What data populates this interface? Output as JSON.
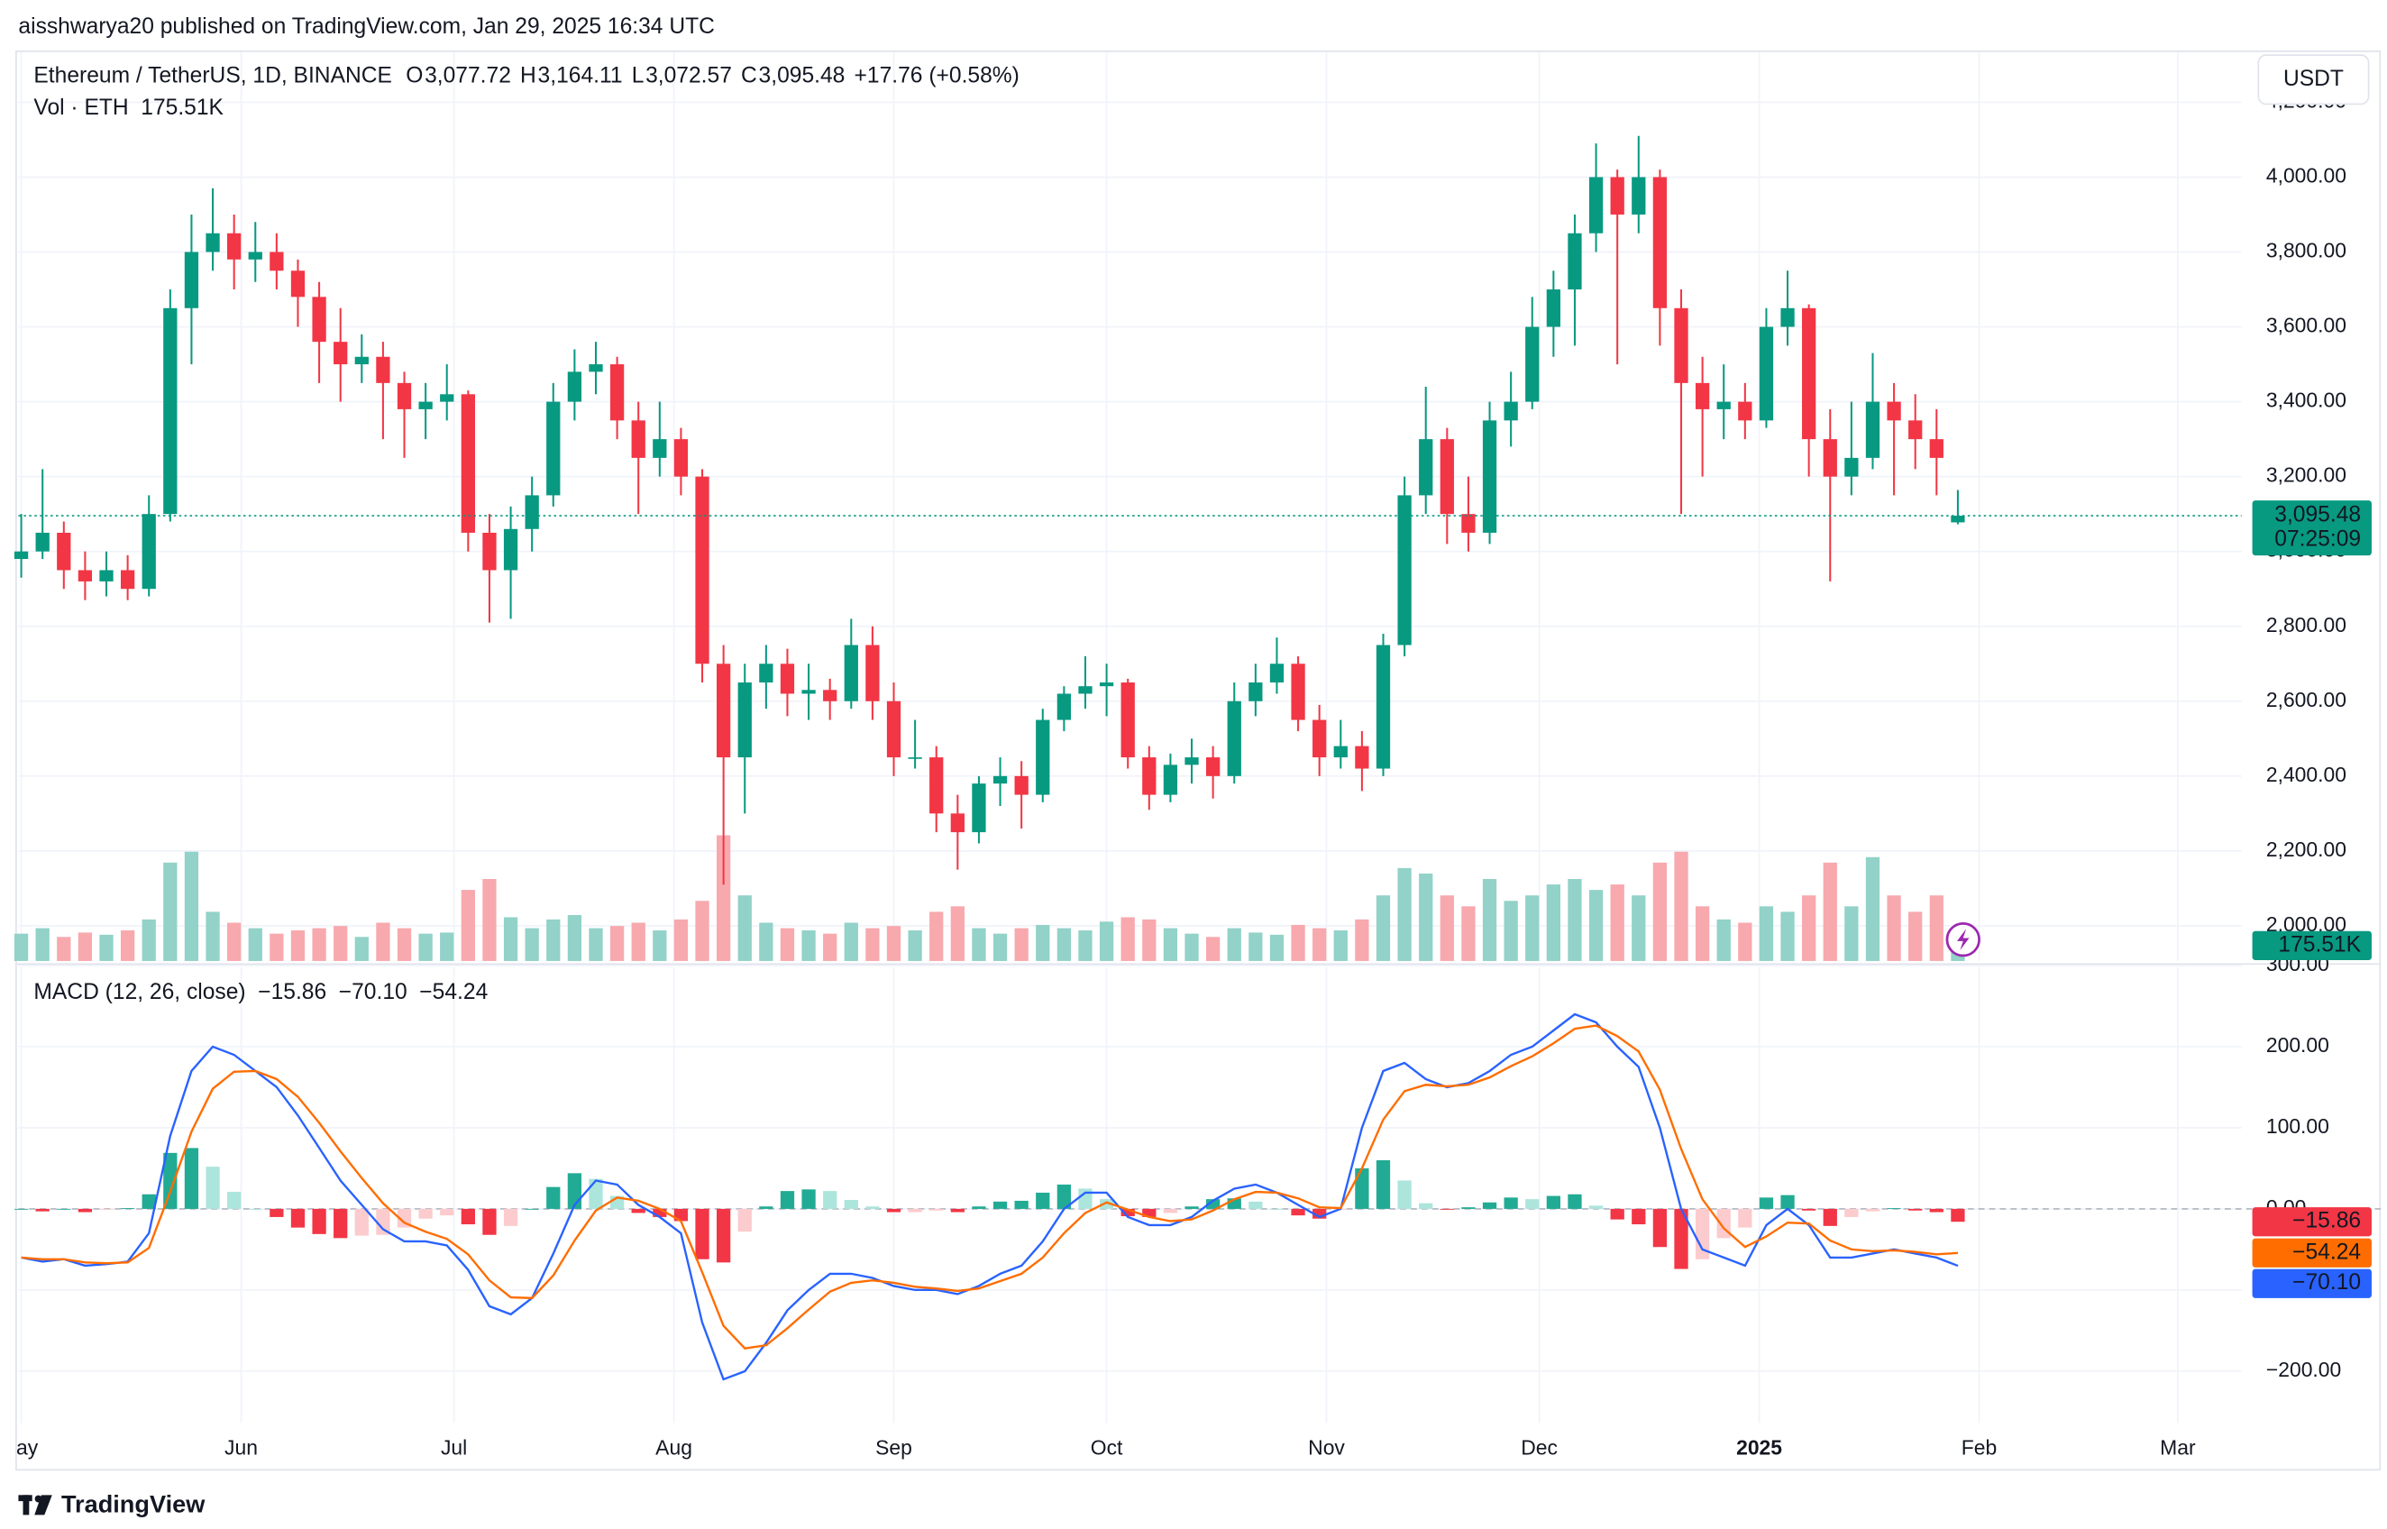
{
  "header": {
    "title": "aisshwarya20 published on TradingView.com, Jan 29, 2025 16:34 UTC"
  },
  "footer": {
    "brand": "TradingView"
  },
  "chart_data": [
    {
      "type": "candlestick",
      "title": "Ethereum / TetherUS, 1D, BINANCE",
      "ohlc_keys": [
        "O",
        "H",
        "L",
        "C"
      ],
      "ohlc_labels": [
        "3,077.72",
        "3,164.11",
        "3,072.57",
        "3,095.48"
      ],
      "change_label": "+17.76 (+0.58%)",
      "currency": "USDT",
      "countdown": "07:25:09",
      "up_color": "#089981",
      "down_color": "#f23645",
      "x": [
        0,
        3,
        6,
        9,
        12,
        15,
        18,
        21,
        24,
        27,
        30,
        33,
        36,
        39,
        42,
        45,
        48,
        51,
        54,
        57,
        60,
        63,
        66,
        69,
        72,
        75,
        78,
        81,
        84,
        87,
        90,
        93,
        96,
        99,
        102,
        105,
        108,
        111,
        114,
        117,
        120,
        123,
        126,
        129,
        132,
        135,
        138,
        141,
        144,
        147,
        150,
        153,
        156,
        159,
        162,
        165,
        168,
        171,
        174,
        177,
        180,
        183,
        186,
        189,
        192,
        195,
        198,
        201,
        204,
        207,
        210,
        213,
        216,
        219,
        222,
        225,
        228,
        231,
        234,
        237,
        240,
        243,
        246,
        249,
        252,
        255,
        258,
        261,
        264,
        267,
        270,
        273
      ],
      "ohlc": [
        [
          2980,
          3100,
          2930,
          3000
        ],
        [
          3000,
          3220,
          2980,
          3050
        ],
        [
          3050,
          3080,
          2900,
          2950
        ],
        [
          2950,
          3000,
          2870,
          2920
        ],
        [
          2920,
          3000,
          2880,
          2950
        ],
        [
          2950,
          2990,
          2870,
          2900
        ],
        [
          2900,
          3150,
          2880,
          3100
        ],
        [
          3100,
          3700,
          3080,
          3650
        ],
        [
          3650,
          3900,
          3500,
          3800
        ],
        [
          3800,
          3970,
          3750,
          3850
        ],
        [
          3850,
          3900,
          3700,
          3780
        ],
        [
          3780,
          3880,
          3720,
          3800
        ],
        [
          3800,
          3850,
          3700,
          3750
        ],
        [
          3750,
          3780,
          3600,
          3680
        ],
        [
          3680,
          3720,
          3450,
          3560
        ],
        [
          3560,
          3650,
          3400,
          3500
        ],
        [
          3500,
          3580,
          3450,
          3520
        ],
        [
          3520,
          3560,
          3300,
          3450
        ],
        [
          3450,
          3480,
          3250,
          3380
        ],
        [
          3380,
          3450,
          3300,
          3400
        ],
        [
          3400,
          3500,
          3350,
          3420
        ],
        [
          3420,
          3430,
          3000,
          3050
        ],
        [
          3050,
          3100,
          2810,
          2950
        ],
        [
          2950,
          3120,
          2820,
          3060
        ],
        [
          3060,
          3200,
          3000,
          3150
        ],
        [
          3150,
          3450,
          3120,
          3400
        ],
        [
          3400,
          3540,
          3350,
          3480
        ],
        [
          3480,
          3560,
          3420,
          3500
        ],
        [
          3500,
          3520,
          3300,
          3350
        ],
        [
          3350,
          3400,
          3100,
          3250
        ],
        [
          3250,
          3400,
          3200,
          3300
        ],
        [
          3300,
          3330,
          3150,
          3200
        ],
        [
          3200,
          3220,
          2650,
          2700
        ],
        [
          2700,
          2750,
          2110,
          2450
        ],
        [
          2450,
          2700,
          2300,
          2650
        ],
        [
          2650,
          2750,
          2580,
          2700
        ],
        [
          2700,
          2740,
          2560,
          2620
        ],
        [
          2620,
          2700,
          2550,
          2630
        ],
        [
          2630,
          2660,
          2550,
          2600
        ],
        [
          2600,
          2820,
          2580,
          2750
        ],
        [
          2750,
          2800,
          2550,
          2600
        ],
        [
          2600,
          2650,
          2400,
          2450
        ],
        [
          2450,
          2550,
          2420,
          2450
        ],
        [
          2450,
          2480,
          2250,
          2300
        ],
        [
          2300,
          2350,
          2150,
          2250
        ],
        [
          2250,
          2400,
          2220,
          2380
        ],
        [
          2380,
          2450,
          2320,
          2400
        ],
        [
          2400,
          2440,
          2260,
          2350
        ],
        [
          2350,
          2580,
          2330,
          2550
        ],
        [
          2550,
          2640,
          2520,
          2620
        ],
        [
          2620,
          2720,
          2580,
          2640
        ],
        [
          2640,
          2700,
          2560,
          2650
        ],
        [
          2650,
          2660,
          2420,
          2450
        ],
        [
          2450,
          2480,
          2310,
          2350
        ],
        [
          2350,
          2460,
          2330,
          2430
        ],
        [
          2430,
          2500,
          2380,
          2450
        ],
        [
          2450,
          2480,
          2340,
          2400
        ],
        [
          2400,
          2650,
          2380,
          2600
        ],
        [
          2600,
          2700,
          2560,
          2650
        ],
        [
          2650,
          2770,
          2620,
          2700
        ],
        [
          2700,
          2720,
          2520,
          2550
        ],
        [
          2550,
          2590,
          2400,
          2450
        ],
        [
          2450,
          2550,
          2420,
          2480
        ],
        [
          2480,
          2520,
          2360,
          2420
        ],
        [
          2420,
          2780,
          2400,
          2750
        ],
        [
          2750,
          3200,
          2720,
          3150
        ],
        [
          3150,
          3440,
          3100,
          3300
        ],
        [
          3300,
          3330,
          3020,
          3100
        ],
        [
          3100,
          3200,
          3000,
          3050
        ],
        [
          3050,
          3400,
          3020,
          3350
        ],
        [
          3350,
          3480,
          3280,
          3400
        ],
        [
          3400,
          3680,
          3380,
          3600
        ],
        [
          3600,
          3750,
          3520,
          3700
        ],
        [
          3700,
          3900,
          3550,
          3850
        ],
        [
          3850,
          4090,
          3800,
          4000
        ],
        [
          4000,
          4020,
          3500,
          3900
        ],
        [
          3900,
          4110,
          3850,
          4000
        ],
        [
          4000,
          4020,
          3550,
          3650
        ],
        [
          3650,
          3700,
          3100,
          3450
        ],
        [
          3450,
          3520,
          3200,
          3380
        ],
        [
          3380,
          3500,
          3300,
          3400
        ],
        [
          3400,
          3450,
          3300,
          3350
        ],
        [
          3350,
          3650,
          3330,
          3600
        ],
        [
          3600,
          3750,
          3550,
          3650
        ],
        [
          3650,
          3660,
          3200,
          3300
        ],
        [
          3300,
          3380,
          2920,
          3200
        ],
        [
          3200,
          3400,
          3150,
          3250
        ],
        [
          3250,
          3530,
          3220,
          3400
        ],
        [
          3400,
          3450,
          3150,
          3350
        ],
        [
          3350,
          3420,
          3220,
          3300
        ],
        [
          3300,
          3380,
          3150,
          3250
        ],
        [
          3077.72,
          3164.11,
          3072.57,
          3095.48
        ]
      ],
      "xlim": [
        -0.4,
        313
      ],
      "xticks": [
        {
          "value": 0,
          "label": "ay"
        },
        {
          "value": 31,
          "label": "Jun"
        },
        {
          "value": 61,
          "label": "Jul"
        },
        {
          "value": 92,
          "label": "Aug"
        },
        {
          "value": 123,
          "label": "Sep"
        },
        {
          "value": 153,
          "label": "Oct"
        },
        {
          "value": 184,
          "label": "Nov"
        },
        {
          "value": 214,
          "label": "Dec"
        },
        {
          "value": 245,
          "label": "2025",
          "bold": true
        },
        {
          "value": 276,
          "label": "Feb"
        },
        {
          "value": 304,
          "label": "Mar"
        }
      ],
      "ylim": [
        1906,
        4326
      ],
      "yticks": [
        {
          "value": 2000,
          "label": "2,000.00"
        },
        {
          "value": 2200,
          "label": "2,200.00"
        },
        {
          "value": 2400,
          "label": "2,400.00"
        },
        {
          "value": 2600,
          "label": "2,600.00"
        },
        {
          "value": 2800,
          "label": "2,800.00"
        },
        {
          "value": 3000,
          "label": "3,000.00"
        },
        {
          "value": 3200,
          "label": "3,200.00"
        },
        {
          "value": 3400,
          "label": "3,400.00"
        },
        {
          "value": 3600,
          "label": "3,600.00"
        },
        {
          "value": 3800,
          "label": "3,800.00"
        },
        {
          "value": 4000,
          "label": "4,000.00"
        },
        {
          "value": 4200,
          "label": "4,200.00"
        }
      ],
      "grid": true
    },
    {
      "type": "volume",
      "title": "Vol · ETH",
      "value_label": "175.51K",
      "up_color": "#92d2c8",
      "down_color": "#f7a9ae",
      "ylim": [
        0,
        1400
      ],
      "values": [
        250,
        300,
        220,
        260,
        240,
        280,
        380,
        900,
        1000,
        450,
        350,
        300,
        250,
        280,
        300,
        320,
        220,
        350,
        300,
        250,
        260,
        650,
        750,
        400,
        300,
        380,
        420,
        300,
        320,
        350,
        280,
        380,
        550,
        1150,
        600,
        350,
        300,
        280,
        250,
        350,
        300,
        320,
        280,
        450,
        500,
        300,
        250,
        300,
        330,
        300,
        280,
        360,
        400,
        380,
        300,
        250,
        220,
        300,
        260,
        240,
        330,
        300,
        280,
        380,
        600,
        850,
        800,
        600,
        500,
        750,
        550,
        600,
        700,
        750,
        650,
        700,
        600,
        900,
        1000,
        500,
        380,
        350,
        500,
        450,
        600,
        900,
        500,
        950,
        600,
        450,
        600,
        175.51
      ]
    },
    {
      "type": "macd",
      "title": "MACD (12, 26, close)",
      "ylim": [
        -264,
        298
      ],
      "yticks": [
        {
          "value": -200,
          "label": "−200.00"
        },
        {
          "value": -100,
          "label": "−100.00"
        },
        {
          "value": 0,
          "label": "0.00"
        },
        {
          "value": 100,
          "label": "100.00"
        },
        {
          "value": 200,
          "label": "200.00"
        },
        {
          "value": 300,
          "label": "300.00"
        }
      ],
      "series": [
        {
          "colors": [
            "#22ab94",
            "#ace5dc",
            "#fccbcd",
            "#f23645"
          ],
          "value_label": "−15.86",
          "values": [
            0,
            -3,
            0,
            -4,
            -1,
            1,
            18,
            69,
            75,
            52,
            21,
            0,
            -10,
            -23,
            -31,
            -36,
            -33,
            -32,
            -23,
            -12,
            -8,
            -19,
            -32,
            -21,
            0,
            27,
            44,
            37,
            16,
            -5,
            -10,
            -15,
            -62,
            -66,
            -28,
            3,
            22,
            24,
            22,
            11,
            3,
            -4,
            -4,
            -2,
            -4,
            3,
            9,
            10,
            20,
            30,
            25,
            12,
            -9,
            -10,
            -5,
            3,
            12,
            13,
            9,
            0,
            -8,
            -12,
            -1,
            50,
            60,
            35,
            7,
            -1,
            2,
            8,
            14,
            12,
            16,
            18,
            4,
            -13,
            -19,
            -47,
            -74,
            -62,
            -36,
            -23,
            14,
            17,
            -2,
            -21,
            -10,
            -3,
            1,
            -2,
            -4,
            -15.86
          ]
        },
        {
          "color": "#2962ff",
          "value_label": "−70.10",
          "values": [
            -60,
            -65,
            -62,
            -70,
            -68,
            -65,
            -30,
            90,
            170,
            200,
            190,
            170,
            150,
            115,
            75,
            35,
            5,
            -25,
            -40,
            -40,
            -45,
            -75,
            -120,
            -130,
            -110,
            -55,
            5,
            35,
            30,
            5,
            -10,
            -30,
            -140,
            -210,
            -200,
            -165,
            -125,
            -100,
            -80,
            -80,
            -85,
            -95,
            -100,
            -100,
            -105,
            -95,
            -80,
            -70,
            -40,
            0,
            20,
            20,
            -10,
            -20,
            -20,
            -10,
            10,
            25,
            30,
            20,
            5,
            -10,
            0,
            100,
            170,
            180,
            160,
            150,
            155,
            170,
            190,
            200,
            220,
            240,
            230,
            200,
            175,
            100,
            0,
            -50,
            -60,
            -70,
            -20,
            0,
            -20,
            -60,
            -60,
            -55,
            -50,
            -55,
            -60,
            -70.1
          ]
        },
        {
          "color": "#ff6d00",
          "value_label": "−54.24",
          "values": [
            -60,
            -62,
            -62,
            -66,
            -67,
            -66,
            -48,
            21,
            95,
            148,
            169,
            170,
            160,
            138,
            106,
            71,
            38,
            7,
            -17,
            -28,
            -37,
            -56,
            -88,
            -109,
            -110,
            -82,
            -39,
            -2,
            14,
            10,
            0,
            -15,
            -78,
            -144,
            -172,
            -168,
            -147,
            -124,
            -102,
            -91,
            -88,
            -91,
            -96,
            -98,
            -101,
            -98,
            -89,
            -80,
            -60,
            -30,
            -5,
            8,
            -1,
            -10,
            -15,
            -13,
            -2,
            12,
            21,
            20,
            13,
            2,
            1,
            50,
            110,
            145,
            153,
            151,
            153,
            162,
            176,
            188,
            204,
            222,
            226,
            213,
            194,
            147,
            74,
            12,
            -24,
            -47,
            -34,
            -17,
            -18,
            -39,
            -50,
            -52,
            -51,
            -53,
            -56,
            -54.24
          ]
        }
      ]
    }
  ]
}
